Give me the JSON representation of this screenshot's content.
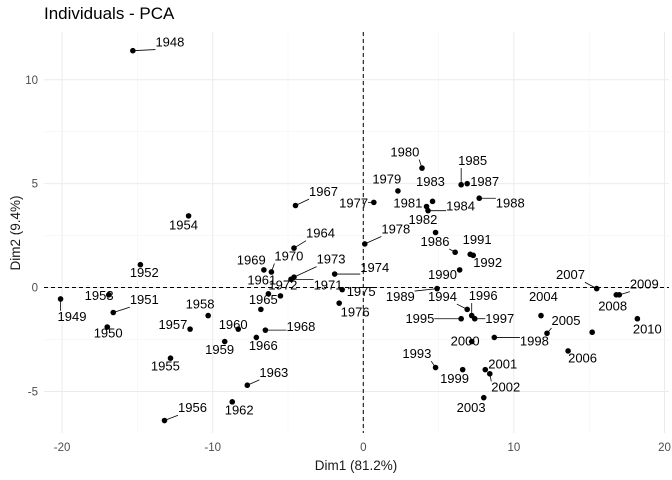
{
  "chart_data": {
    "type": "scatter",
    "title": "Individuals - PCA",
    "xlabel": "Dim1 (81.2%)",
    "ylabel": "Dim2 (9.4%)",
    "xlim": [
      -21.2,
      20.3
    ],
    "ylim": [
      -7.0,
      12.3
    ],
    "xticks": [
      -20,
      -10,
      0,
      10,
      20
    ],
    "yticks": [
      -5,
      0,
      5,
      10
    ],
    "grid": true,
    "reference_lines": {
      "x": 0,
      "y": 0,
      "style": "dashed"
    },
    "points": [
      {
        "label": "1948",
        "x": -15.3,
        "y": 11.4,
        "lx": -13.8,
        "ly": 11.6
      },
      {
        "label": "1949",
        "x": -20.1,
        "y": -0.55,
        "lx": -20.3,
        "ly": -1.6
      },
      {
        "label": "1950",
        "x": -17.0,
        "y": -1.9,
        "lx": -17.9,
        "ly": -2.4
      },
      {
        "label": "1951",
        "x": -16.6,
        "y": -1.2,
        "lx": -15.5,
        "ly": -0.8
      },
      {
        "label": "1952",
        "x": -14.8,
        "y": 1.1,
        "lx": -15.5,
        "ly": 0.5
      },
      {
        "label": "1953",
        "x": -16.9,
        "y": -0.35,
        "lx": -18.5,
        "ly": -0.6
      },
      {
        "label": "1954",
        "x": -11.6,
        "y": 3.45,
        "lx": -12.9,
        "ly": 2.8
      },
      {
        "label": "1955",
        "x": -12.8,
        "y": -3.4,
        "lx": -14.1,
        "ly": -4.0
      },
      {
        "label": "1956",
        "x": -13.2,
        "y": -6.4,
        "lx": -12.3,
        "ly": -6.0
      },
      {
        "label": "1957",
        "x": -11.5,
        "y": -2.0,
        "lx": -13.6,
        "ly": -2.0
      },
      {
        "label": "1958",
        "x": -10.3,
        "y": -1.35,
        "lx": -11.8,
        "ly": -1.0
      },
      {
        "label": "1959",
        "x": -9.2,
        "y": -2.6,
        "lx": -10.5,
        "ly": -3.2
      },
      {
        "label": "1960",
        "x": -8.3,
        "y": -2.0,
        "lx": -9.6,
        "ly": -2.0
      },
      {
        "label": "1961",
        "x": -6.3,
        "y": -0.3,
        "lx": -7.7,
        "ly": 0.15
      },
      {
        "label": "1962",
        "x": -8.7,
        "y": -5.5,
        "lx": -9.2,
        "ly": -6.1
      },
      {
        "label": "1963",
        "x": -7.7,
        "y": -4.7,
        "lx": -6.9,
        "ly": -4.3
      },
      {
        "label": "1964",
        "x": -4.6,
        "y": 1.9,
        "lx": -3.8,
        "ly": 2.4
      },
      {
        "label": "1965",
        "x": -6.8,
        "y": -1.05,
        "lx": -7.6,
        "ly": -0.8
      },
      {
        "label": "1966",
        "x": -7.1,
        "y": -2.4,
        "lx": -7.6,
        "ly": -3.0
      },
      {
        "label": "1967",
        "x": -4.5,
        "y": 3.95,
        "lx": -3.6,
        "ly": 4.4
      },
      {
        "label": "1968",
        "x": -6.5,
        "y": -2.05,
        "lx": -5.1,
        "ly": -2.1
      },
      {
        "label": "1969",
        "x": -6.6,
        "y": 0.85,
        "lx": -8.4,
        "ly": 1.1
      },
      {
        "label": "1970",
        "x": -6.1,
        "y": 0.75,
        "lx": -5.9,
        "ly": 1.3
      },
      {
        "label": "1971",
        "x": -4.8,
        "y": 0.4,
        "lx": -3.3,
        "ly": -0.1
      },
      {
        "label": "1972",
        "x": -5.5,
        "y": -0.4,
        "lx": -6.3,
        "ly": -0.1
      },
      {
        "label": "1973",
        "x": -4.6,
        "y": 0.5,
        "lx": -3.1,
        "ly": 1.15
      },
      {
        "label": "1974",
        "x": -1.9,
        "y": 0.65,
        "lx": -0.2,
        "ly": 0.75
      },
      {
        "label": "1975",
        "x": -1.4,
        "y": -0.1,
        "lx": -1.1,
        "ly": -0.4
      },
      {
        "label": "1976",
        "x": -1.6,
        "y": -0.75,
        "lx": -1.5,
        "ly": -1.4
      },
      {
        "label": "1977",
        "x": 0.7,
        "y": 4.1,
        "lx": -1.6,
        "ly": 3.85
      },
      {
        "label": "1978",
        "x": 0.1,
        "y": 2.1,
        "lx": 1.2,
        "ly": 2.6
      },
      {
        "label": "1979",
        "x": 2.3,
        "y": 4.65,
        "lx": 0.6,
        "ly": 5.0
      },
      {
        "label": "1980",
        "x": 3.9,
        "y": 5.75,
        "lx": 1.8,
        "ly": 6.3
      },
      {
        "label": "1981",
        "x": 4.2,
        "y": 3.9,
        "lx": 2.0,
        "ly": 3.85
      },
      {
        "label": "1982",
        "x": 4.8,
        "y": 2.65,
        "lx": 3.0,
        "ly": 3.05
      },
      {
        "label": "1983",
        "x": 4.6,
        "y": 4.15,
        "lx": 3.5,
        "ly": 4.9
      },
      {
        "label": "1984",
        "x": 4.3,
        "y": 3.7,
        "lx": 5.5,
        "ly": 3.7
      },
      {
        "label": "1985",
        "x": 6.5,
        "y": 4.95,
        "lx": 6.3,
        "ly": 5.9
      },
      {
        "label": "1986",
        "x": 6.1,
        "y": 1.7,
        "lx": 3.8,
        "ly": 2.0
      },
      {
        "label": "1987",
        "x": 6.9,
        "y": 5.0,
        "lx": 7.1,
        "ly": 4.9
      },
      {
        "label": "1988",
        "x": 7.7,
        "y": 4.3,
        "lx": 8.8,
        "ly": 3.85
      },
      {
        "label": "1989",
        "x": 4.9,
        "y": -0.05,
        "lx": 1.5,
        "ly": -0.65
      },
      {
        "label": "1990",
        "x": 6.4,
        "y": 0.85,
        "lx": 4.3,
        "ly": 0.4
      },
      {
        "label": "1991",
        "x": 7.1,
        "y": 1.6,
        "lx": 6.6,
        "ly": 2.1
      },
      {
        "label": "1992",
        "x": 7.3,
        "y": 1.55,
        "lx": 7.3,
        "ly": 1.0
      },
      {
        "label": "1993",
        "x": 4.8,
        "y": -3.85,
        "lx": 2.6,
        "ly": -3.4
      },
      {
        "label": "1994",
        "x": 6.9,
        "y": -1.05,
        "lx": 4.3,
        "ly": -0.65
      },
      {
        "label": "1995",
        "x": 6.5,
        "y": -1.5,
        "lx": 2.8,
        "ly": -1.7
      },
      {
        "label": "1996",
        "x": 7.2,
        "y": -1.35,
        "lx": 7.0,
        "ly": -0.6
      },
      {
        "label": "1997",
        "x": 7.4,
        "y": -1.5,
        "lx": 8.1,
        "ly": -1.7
      },
      {
        "label": "1998",
        "x": 8.7,
        "y": -2.4,
        "lx": 10.4,
        "ly": -2.8
      },
      {
        "label": "1999",
        "x": 6.6,
        "y": -3.95,
        "lx": 5.1,
        "ly": -4.6
      },
      {
        "label": "2000",
        "x": 7.2,
        "y": -2.6,
        "lx": 5.8,
        "ly": -2.8
      },
      {
        "label": "2001",
        "x": 8.1,
        "y": -3.95,
        "lx": 8.3,
        "ly": -3.9
      },
      {
        "label": "2002",
        "x": 8.4,
        "y": -4.15,
        "lx": 8.5,
        "ly": -5.0
      },
      {
        "label": "2003",
        "x": 8.0,
        "y": -5.3,
        "lx": 6.2,
        "ly": -6.0
      },
      {
        "label": "2004",
        "x": 11.8,
        "y": -1.35,
        "lx": 11.0,
        "ly": -0.65
      },
      {
        "label": "2005",
        "x": 12.2,
        "y": -2.2,
        "lx": 12.5,
        "ly": -1.8
      },
      {
        "label": "2006",
        "x": 13.6,
        "y": -3.05,
        "lx": 13.6,
        "ly": -3.6
      },
      {
        "label": "2007",
        "x": 15.5,
        "y": -0.05,
        "lx": 12.8,
        "ly": 0.4
      },
      {
        "label": "2008",
        "x": 16.8,
        "y": -0.35,
        "lx": 15.6,
        "ly": -1.1
      },
      {
        "label": "2009",
        "x": 17.0,
        "y": -0.35,
        "lx": 17.7,
        "ly": -0.05
      },
      {
        "label": "2010",
        "x": 18.2,
        "y": -1.5,
        "lx": 17.9,
        "ly": -2.2
      },
      {
        "label": "",
        "x": 15.2,
        "y": -2.15,
        "lx": null,
        "ly": null
      }
    ]
  }
}
